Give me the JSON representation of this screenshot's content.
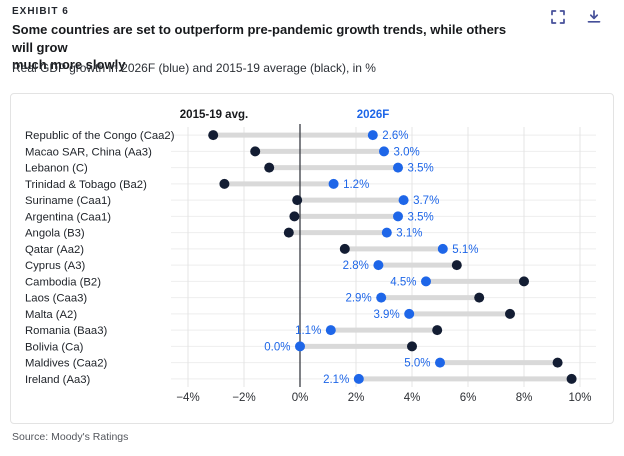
{
  "header": {
    "exhibit_label": "EXHIBIT 6",
    "title_lines": [
      "Some countries are set to outperform pre-pandemic growth trends, while others will grow",
      "much more slowly"
    ],
    "subtitle": "Real GDP growth in 2026F (blue) and 2015-19 average (black), in %",
    "icons": [
      {
        "name": "expand-icon"
      },
      {
        "name": "download-icon"
      }
    ],
    "icon_color": "#454f99"
  },
  "source": "Source: Moody's Ratings",
  "colors": {
    "blue": "#1e66e8",
    "black_dot": "#131d33",
    "connector": "#d9d9d9",
    "gridline": "#e4e4e4",
    "row_line": "#eeeeee",
    "zero_line": "#3a3d44",
    "tick_text": "#2c2f34",
    "category_text": "#1e2228",
    "header_black": "#17191c"
  },
  "chart_data": {
    "type": "dumbbell",
    "title": "Some countries are set to outperform pre-pandemic growth trends, while others will grow much more slowly",
    "xlabel": "Real GDP growth, in %",
    "xlim": [
      -4,
      10
    ],
    "grid": true,
    "column_headers": [
      {
        "label": "2015-19 avg.",
        "color": "#17191c"
      },
      {
        "label": "2026F",
        "color": "#1e66e8"
      }
    ],
    "x_ticks": [
      {
        "value": -4,
        "label": "−4%"
      },
      {
        "value": -2,
        "label": "−2%"
      },
      {
        "value": 0,
        "label": "0%"
      },
      {
        "value": 2,
        "label": "2%"
      },
      {
        "value": 4,
        "label": "4%"
      },
      {
        "value": 6,
        "label": "6%"
      },
      {
        "value": 8,
        "label": "8%"
      },
      {
        "value": 10,
        "label": "10%"
      }
    ],
    "categories": [
      "Republic of the Congo (Caa2)",
      "Macao SAR, China (Aa3)",
      "Lebanon (C)",
      "Trinidad & Tobago (Ba2)",
      "Suriname (Caa1)",
      "Argentina (Caa1)",
      "Angola (B3)",
      "Qatar (Aa2)",
      "Cyprus (A3)",
      "Cambodia (B2)",
      "Laos (Caa3)",
      "Malta (A2)",
      "Romania (Baa3)",
      "Bolivia (Ca)",
      "Maldives (Caa2)",
      "Ireland (Aa3)"
    ],
    "series": [
      {
        "name": "2015-19 avg.",
        "color": "#131d33",
        "values": [
          -3.1,
          -1.6,
          -1.1,
          -2.7,
          -0.1,
          -0.2,
          -0.4,
          1.6,
          5.6,
          8.0,
          6.4,
          7.5,
          4.9,
          4.0,
          9.2,
          9.7
        ]
      },
      {
        "name": "2026F",
        "color": "#1e66e8",
        "values": [
          2.6,
          3.0,
          3.5,
          1.2,
          3.7,
          3.5,
          3.1,
          5.1,
          2.8,
          4.5,
          2.9,
          3.9,
          1.1,
          0.0,
          5.0,
          2.1
        ],
        "value_labels": [
          "2.6%",
          "3.0%",
          "3.5%",
          "1.2%",
          "3.7%",
          "3.5%",
          "3.1%",
          "5.1%",
          "2.8%",
          "4.5%",
          "2.9%",
          "3.9%",
          "1.1%",
          "0.0%",
          "5.0%",
          "2.1%"
        ],
        "label_side": [
          "right",
          "right",
          "right",
          "right",
          "right",
          "right",
          "right",
          "right",
          "left",
          "left",
          "left",
          "left",
          "left",
          "left",
          "left",
          "left"
        ]
      }
    ]
  }
}
